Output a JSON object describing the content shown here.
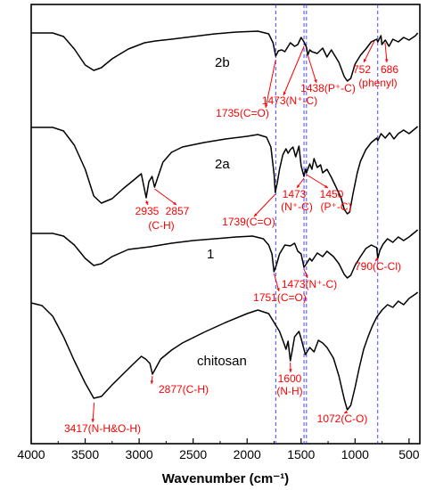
{
  "colors": {
    "spectrum": "#000000",
    "annotation": "#ff0000",
    "marker_line": "#3333ff",
    "axis": "#000000"
  },
  "chart_data": {
    "type": "line",
    "xlabel": "Wavenumber (cm⁻¹)",
    "ylabel": "",
    "xlim": [
      4000,
      400
    ],
    "x_reversed": true,
    "grid": false,
    "y_ticks_shown": false,
    "x_ticks": [
      4000,
      3500,
      3000,
      2500,
      2000,
      1500,
      1000,
      500
    ],
    "x_tick_labels": [
      "4000",
      "3500",
      "3000",
      "2500",
      "2000",
      "1500",
      "1000",
      "500"
    ],
    "reference_lines": [
      1735,
      1473,
      1450,
      790
    ],
    "series": [
      {
        "name": "2b",
        "points": [
          [
            4000,
            37
          ],
          [
            3800,
            37
          ],
          [
            3700,
            41
          ],
          [
            3600,
            55
          ],
          [
            3500,
            73
          ],
          [
            3420,
            79
          ],
          [
            3350,
            76
          ],
          [
            3250,
            66
          ],
          [
            3100,
            55
          ],
          [
            2950,
            48
          ],
          [
            2850,
            46
          ],
          [
            2700,
            44
          ],
          [
            2500,
            41
          ],
          [
            2300,
            38
          ],
          [
            2100,
            36
          ],
          [
            1900,
            35
          ],
          [
            1800,
            38
          ],
          [
            1760,
            48
          ],
          [
            1735,
            63
          ],
          [
            1710,
            57
          ],
          [
            1680,
            56
          ],
          [
            1650,
            58
          ],
          [
            1600,
            48
          ],
          [
            1560,
            52
          ],
          [
            1530,
            50
          ],
          [
            1500,
            42
          ],
          [
            1473,
            47
          ],
          [
            1450,
            53
          ],
          [
            1438,
            62
          ],
          [
            1420,
            56
          ],
          [
            1400,
            58
          ],
          [
            1350,
            60
          ],
          [
            1300,
            54
          ],
          [
            1260,
            64
          ],
          [
            1220,
            56
          ],
          [
            1200,
            60
          ],
          [
            1150,
            70
          ],
          [
            1100,
            86
          ],
          [
            1072,
            91
          ],
          [
            1040,
            88
          ],
          [
            1000,
            72
          ],
          [
            950,
            62
          ],
          [
            900,
            55
          ],
          [
            850,
            47
          ],
          [
            800,
            44
          ],
          [
            790,
            47
          ],
          [
            760,
            40
          ],
          [
            752,
            50
          ],
          [
            720,
            45
          ],
          [
            686,
            52
          ],
          [
            650,
            44
          ],
          [
            600,
            47
          ],
          [
            550,
            42
          ],
          [
            500,
            45
          ],
          [
            440,
            40
          ],
          [
            420,
            37
          ]
        ]
      },
      {
        "name": "2a",
        "points": [
          [
            4000,
            143
          ],
          [
            3800,
            143
          ],
          [
            3700,
            147
          ],
          [
            3600,
            163
          ],
          [
            3500,
            190
          ],
          [
            3420,
            220
          ],
          [
            3350,
            228
          ],
          [
            3250,
            223
          ],
          [
            3150,
            212
          ],
          [
            3050,
            202
          ],
          [
            2980,
            195
          ],
          [
            2935,
            222
          ],
          [
            2910,
            204
          ],
          [
            2880,
            198
          ],
          [
            2857,
            210
          ],
          [
            2830,
            200
          ],
          [
            2780,
            182
          ],
          [
            2700,
            171
          ],
          [
            2600,
            165
          ],
          [
            2400,
            160
          ],
          [
            2200,
            156
          ],
          [
            2000,
            153
          ],
          [
            1900,
            151
          ],
          [
            1820,
            154
          ],
          [
            1780,
            165
          ],
          [
            1750,
            196
          ],
          [
            1739,
            216
          ],
          [
            1720,
            205
          ],
          [
            1700,
            190
          ],
          [
            1670,
            174
          ],
          [
            1640,
            167
          ],
          [
            1620,
            172
          ],
          [
            1600,
            168
          ],
          [
            1575,
            165
          ],
          [
            1550,
            176
          ],
          [
            1520,
            164
          ],
          [
            1500,
            186
          ],
          [
            1473,
            198
          ],
          [
            1460,
            190
          ],
          [
            1450,
            194
          ],
          [
            1420,
            184
          ],
          [
            1400,
            190
          ],
          [
            1380,
            178
          ],
          [
            1350,
            188
          ],
          [
            1320,
            185
          ],
          [
            1300,
            194
          ],
          [
            1260,
            190
          ],
          [
            1220,
            199
          ],
          [
            1180,
            209
          ],
          [
            1130,
            222
          ],
          [
            1100,
            235
          ],
          [
            1072,
            240
          ],
          [
            1050,
            238
          ],
          [
            1020,
            218
          ],
          [
            980,
            194
          ],
          [
            950,
            181
          ],
          [
            900,
            168
          ],
          [
            850,
            160
          ],
          [
            800,
            155
          ],
          [
            790,
            158
          ],
          [
            760,
            150
          ],
          [
            720,
            155
          ],
          [
            680,
            149
          ],
          [
            640,
            156
          ],
          [
            600,
            150
          ],
          [
            550,
            146
          ],
          [
            500,
            150
          ],
          [
            440,
            144
          ],
          [
            420,
            142
          ]
        ]
      },
      {
        "name": "1",
        "points": [
          [
            4000,
            262
          ],
          [
            3800,
            262
          ],
          [
            3700,
            265
          ],
          [
            3600,
            275
          ],
          [
            3500,
            290
          ],
          [
            3420,
            298
          ],
          [
            3350,
            296
          ],
          [
            3250,
            288
          ],
          [
            3100,
            280
          ],
          [
            2900,
            277
          ],
          [
            2700,
            273
          ],
          [
            2500,
            270
          ],
          [
            2300,
            268
          ],
          [
            2100,
            266
          ],
          [
            1950,
            265
          ],
          [
            1850,
            268
          ],
          [
            1800,
            275
          ],
          [
            1770,
            285
          ],
          [
            1751,
            305
          ],
          [
            1730,
            298
          ],
          [
            1700,
            285
          ],
          [
            1650,
            275
          ],
          [
            1600,
            276
          ],
          [
            1560,
            273
          ],
          [
            1530,
            282
          ],
          [
            1500,
            285
          ],
          [
            1473,
            300
          ],
          [
            1450,
            296
          ],
          [
            1420,
            290
          ],
          [
            1400,
            293
          ],
          [
            1350,
            284
          ],
          [
            1300,
            288
          ],
          [
            1260,
            282
          ],
          [
            1200,
            288
          ],
          [
            1150,
            296
          ],
          [
            1100,
            308
          ],
          [
            1072,
            312
          ],
          [
            1040,
            309
          ],
          [
            1000,
            298
          ],
          [
            950,
            288
          ],
          [
            900,
            279
          ],
          [
            850,
            275
          ],
          [
            800,
            278
          ],
          [
            790,
            290
          ],
          [
            770,
            281
          ],
          [
            740,
            274
          ],
          [
            700,
            268
          ],
          [
            650,
            272
          ],
          [
            600,
            266
          ],
          [
            550,
            270
          ],
          [
            500,
            266
          ],
          [
            440,
            260
          ],
          [
            420,
            258
          ]
        ]
      },
      {
        "name": "chitosan",
        "points": [
          [
            4000,
            340
          ],
          [
            3900,
            343
          ],
          [
            3800,
            355
          ],
          [
            3700,
            378
          ],
          [
            3600,
            405
          ],
          [
            3500,
            430
          ],
          [
            3420,
            447
          ],
          [
            3350,
            445
          ],
          [
            3250,
            432
          ],
          [
            3150,
            420
          ],
          [
            3050,
            408
          ],
          [
            2980,
            400
          ],
          [
            2940,
            403
          ],
          [
            2900,
            408
          ],
          [
            2877,
            420
          ],
          [
            2850,
            414
          ],
          [
            2800,
            403
          ],
          [
            2700,
            393
          ],
          [
            2600,
            385
          ],
          [
            2400,
            373
          ],
          [
            2200,
            362
          ],
          [
            2000,
            352
          ],
          [
            1900,
            348
          ],
          [
            1800,
            352
          ],
          [
            1750,
            362
          ],
          [
            1700,
            372
          ],
          [
            1660,
            385
          ],
          [
            1640,
            392
          ],
          [
            1620,
            383
          ],
          [
            1600,
            405
          ],
          [
            1580,
            392
          ],
          [
            1560,
            378
          ],
          [
            1520,
            372
          ],
          [
            1500,
            380
          ],
          [
            1460,
            398
          ],
          [
            1420,
            390
          ],
          [
            1380,
            395
          ],
          [
            1340,
            382
          ],
          [
            1300,
            385
          ],
          [
            1260,
            390
          ],
          [
            1200,
            402
          ],
          [
            1150,
            422
          ],
          [
            1100,
            448
          ],
          [
            1072,
            460
          ],
          [
            1040,
            455
          ],
          [
            1000,
            435
          ],
          [
            960,
            412
          ],
          [
            920,
            392
          ],
          [
            880,
            378
          ],
          [
            840,
            366
          ],
          [
            800,
            356
          ],
          [
            750,
            348
          ],
          [
            700,
            342
          ],
          [
            650,
            345
          ],
          [
            600,
            338
          ],
          [
            550,
            342
          ],
          [
            500,
            335
          ],
          [
            440,
            330
          ],
          [
            420,
            328
          ]
        ]
      }
    ],
    "series_labels": [
      "2b",
      "2a",
      "1",
      "chitosan"
    ],
    "annotations": [
      {
        "text": "1735(C=O)",
        "wavenumber": 1735,
        "series": "2b"
      },
      {
        "text": "1473(N⁺-C)",
        "wavenumber": 1473,
        "series": "2b"
      },
      {
        "text": "1438(P⁺-C)",
        "wavenumber": 1438,
        "series": "2b"
      },
      {
        "text": "752",
        "wavenumber": 752,
        "series": "2b"
      },
      {
        "text": "686",
        "wavenumber": 686,
        "series": "2b"
      },
      {
        "text": "(phenyl)",
        "wavenumber": 720,
        "series": "2b"
      },
      {
        "text": "2935",
        "wavenumber": 2935,
        "series": "2a"
      },
      {
        "text": "2857",
        "wavenumber": 2857,
        "series": "2a"
      },
      {
        "text": "(C-H)",
        "wavenumber": 2900,
        "series": "2a"
      },
      {
        "text": "1739(C=O)",
        "wavenumber": 1739,
        "series": "2a"
      },
      {
        "text": "1473",
        "wavenumber": 1473,
        "series": "2a"
      },
      {
        "text": "(N⁺-C)",
        "wavenumber": 1473,
        "series": "2a"
      },
      {
        "text": "1450",
        "wavenumber": 1450,
        "series": "2a"
      },
      {
        "text": "(P⁺-C)",
        "wavenumber": 1450,
        "series": "2a"
      },
      {
        "text": "1473(N⁺-C)",
        "wavenumber": 1473,
        "series": "1"
      },
      {
        "text": "1751(C=O)",
        "wavenumber": 1751,
        "series": "1"
      },
      {
        "text": "790(C-Cl)",
        "wavenumber": 790,
        "series": "1"
      },
      {
        "text": "1600",
        "wavenumber": 1600,
        "series": "chitosan"
      },
      {
        "text": "(N-H)",
        "wavenumber": 1600,
        "series": "chitosan"
      },
      {
        "text": "2877(C-H)",
        "wavenumber": 2877,
        "series": "chitosan"
      },
      {
        "text": "3417(N-H&O-H)",
        "wavenumber": 3417,
        "series": "chitosan"
      },
      {
        "text": "1072(C-O)",
        "wavenumber": 1072,
        "series": "chitosan"
      }
    ]
  }
}
